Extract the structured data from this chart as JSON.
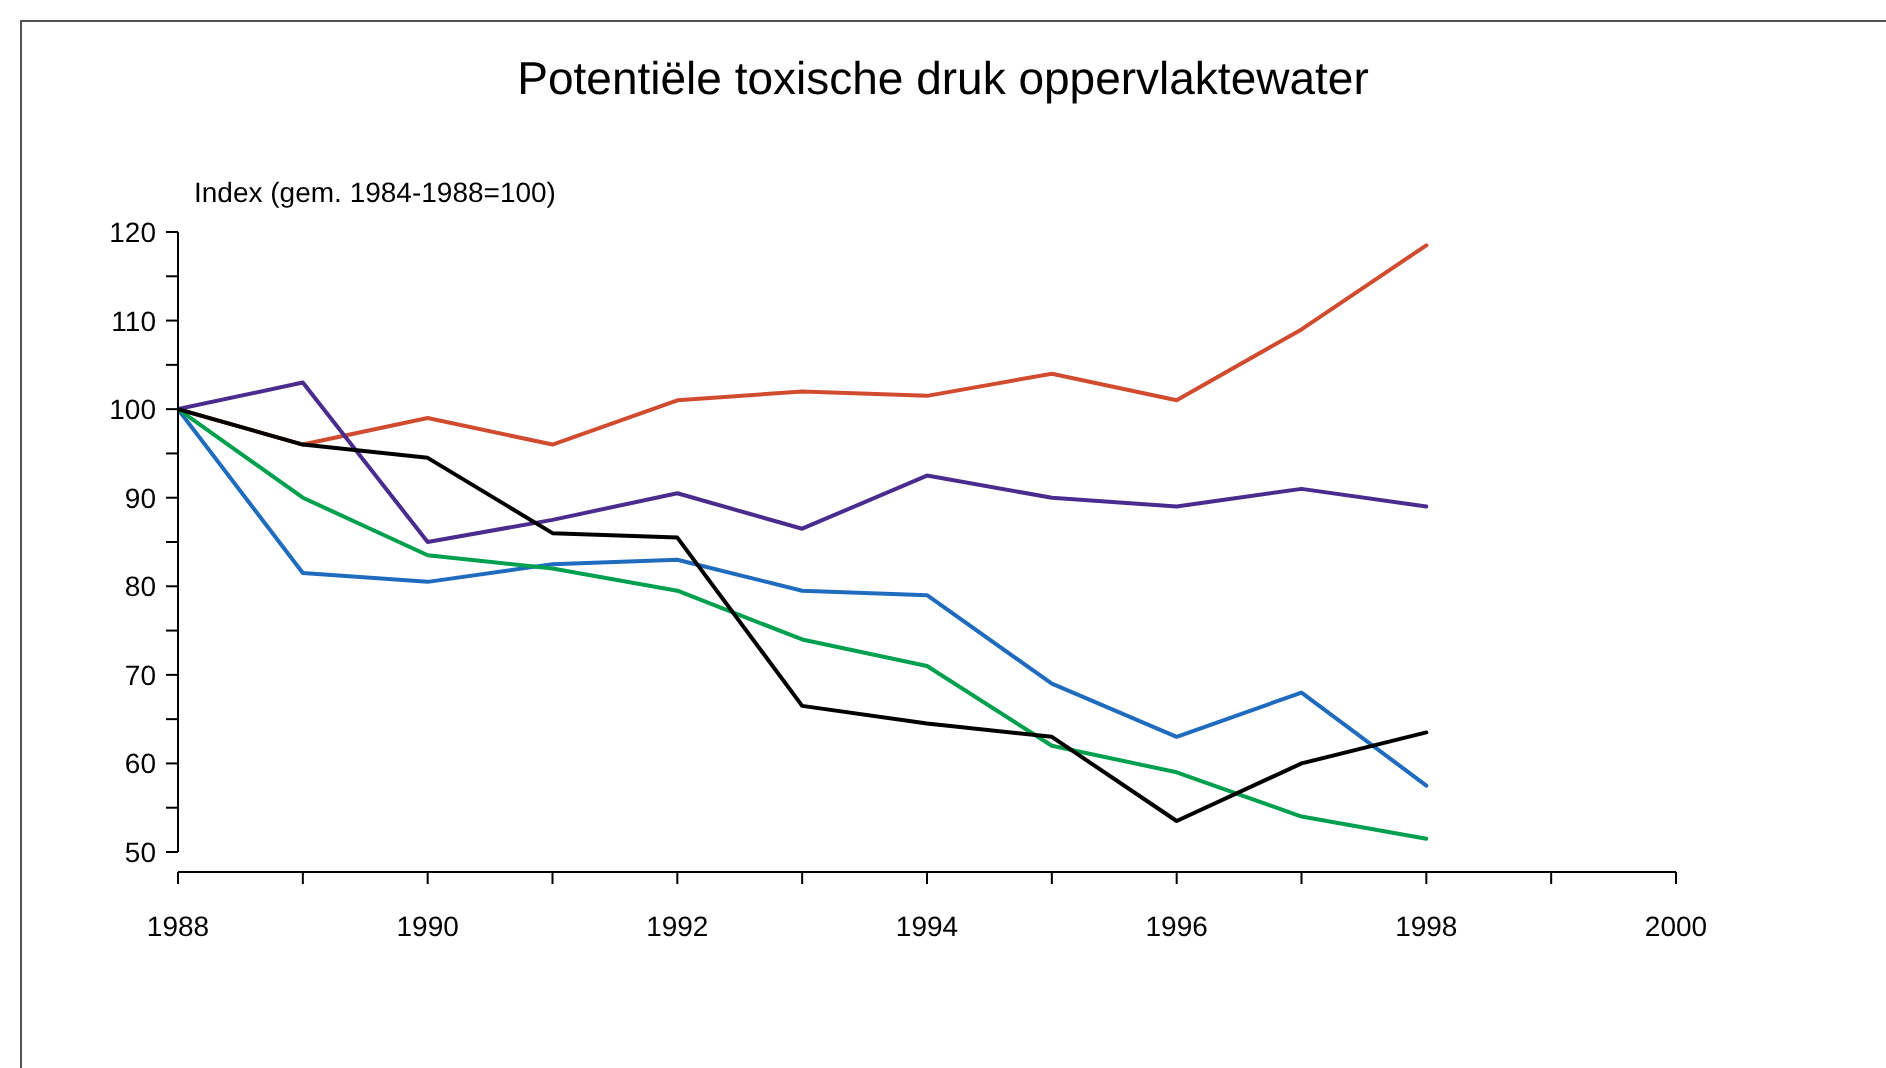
{
  "chart_data": {
    "type": "line",
    "title": "Potentiële toxische druk oppervlaktewater",
    "ylabel": "Index (gem. 1984-1988=100)",
    "x": [
      1988,
      1989,
      1990,
      1991,
      1992,
      1993,
      1994,
      1995,
      1996,
      1997,
      1998
    ],
    "series": [
      {
        "color": "#d14b2f",
        "values": [
          100,
          96,
          99,
          96,
          101,
          102,
          101.5,
          104,
          101,
          109,
          118.5
        ]
      },
      {
        "color": "#4a2c8f",
        "values": [
          100,
          103,
          85,
          87.5,
          90.5,
          86.5,
          92.5,
          90,
          89,
          91,
          89
        ]
      },
      {
        "color": "#1f6cbf",
        "values": [
          100,
          81.5,
          80.5,
          82.5,
          83,
          79.5,
          79,
          69,
          63,
          68,
          57.5
        ]
      },
      {
        "color": "#00a04e",
        "values": [
          100,
          90,
          83.5,
          82,
          79.5,
          74,
          71,
          62,
          59,
          54,
          51.5
        ]
      },
      {
        "color": "#000000",
        "values": [
          100,
          96,
          94.5,
          86,
          85.5,
          66.5,
          64.5,
          63,
          53.5,
          60,
          63.5
        ]
      }
    ],
    "xlim": [
      1988,
      2000
    ],
    "xticks": [
      1988,
      {
        "value": 1989,
        "label": null
      },
      1990,
      {
        "value": 1991,
        "label": null
      },
      1992,
      {
        "value": 1993,
        "label": null
      },
      1994,
      {
        "value": 1995,
        "label": null
      },
      1996,
      {
        "value": 1997,
        "label": null
      },
      1998,
      {
        "value": 1999,
        "label": null
      },
      2000
    ],
    "ylim": [
      50,
      120
    ],
    "yticks": [
      50,
      {
        "value": 55,
        "label": null
      },
      60,
      {
        "value": 65,
        "label": null
      },
      70,
      {
        "value": 75,
        "label": null
      },
      80,
      {
        "value": 85,
        "label": null
      },
      90,
      {
        "value": 95,
        "label": null
      },
      100,
      {
        "value": 105,
        "label": null
      },
      110,
      {
        "value": 115,
        "label": null
      },
      120
    ],
    "line_style": "solid"
  }
}
